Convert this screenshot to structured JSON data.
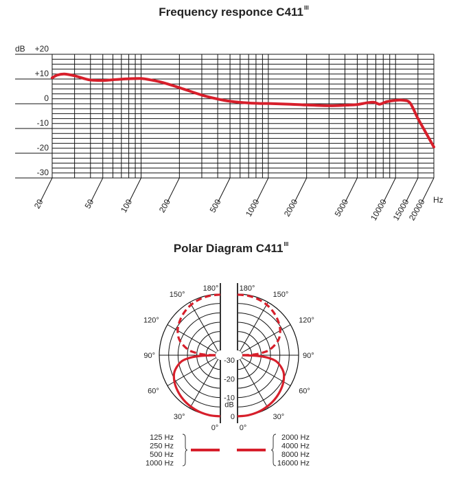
{
  "colors": {
    "curve": "#d71f2b",
    "grid": "#111111",
    "text": "#222222"
  },
  "chart_data": [
    {
      "type": "line",
      "title": "Frequency responce C411",
      "title_superscript": "III",
      "xlabel": "Hz",
      "ylabel": "dB",
      "xscale": "log",
      "xlim": [
        20,
        20000
      ],
      "ylim": [
        -30,
        20
      ],
      "x_tick_labels": [
        "20",
        "50",
        "100",
        "200",
        "500",
        "1000",
        "2000",
        "5000",
        "10000",
        "15000",
        "20000"
      ],
      "x_tick_values": [
        20,
        50,
        100,
        200,
        500,
        1000,
        2000,
        5000,
        10000,
        15000,
        20000
      ],
      "x_grid_values": [
        20,
        30,
        40,
        50,
        60,
        70,
        80,
        90,
        100,
        200,
        300,
        400,
        500,
        600,
        700,
        800,
        900,
        1000,
        2000,
        3000,
        4000,
        5000,
        6000,
        7000,
        8000,
        9000,
        10000,
        15000,
        20000
      ],
      "y_tick_labels": [
        "+20",
        "+10",
        "0",
        "-10",
        "-20",
        "-30"
      ],
      "y_tick_values": [
        20,
        10,
        0,
        -10,
        -20,
        -30
      ],
      "y_grid_step": 2,
      "grid": true,
      "series": [
        {
          "name": "C411 frequency response",
          "x": [
            20,
            22,
            25,
            30,
            35,
            40,
            50,
            60,
            80,
            100,
            120,
            150,
            200,
            300,
            400,
            500,
            700,
            900,
            1000,
            1500,
            2000,
            3000,
            4000,
            5000,
            6000,
            6800,
            7500,
            8500,
            10000,
            11500,
            13000,
            15000,
            17000,
            20000
          ],
          "y": [
            10.5,
            11.6,
            12.0,
            11.3,
            10.3,
            9.6,
            9.4,
            9.7,
            10.1,
            10.2,
            9.6,
            8.5,
            6.5,
            3.5,
            1.9,
            1.0,
            0.3,
            0.1,
            0.1,
            -0.2,
            -0.5,
            -0.8,
            -0.6,
            -0.3,
            0.4,
            0.6,
            -0.2,
            0.8,
            1.4,
            1.4,
            0.3,
            -6.0,
            -11.0,
            -17.5
          ]
        }
      ]
    },
    {
      "type": "polar",
      "title": "Polar Diagram C411",
      "title_superscript": "III",
      "pattern": "figure-8 (split into two half-diagrams)",
      "angle_labels": [
        "0°",
        "30°",
        "60°",
        "90°",
        "120°",
        "150°",
        "180°"
      ],
      "angle_values": [
        0,
        30,
        60,
        90,
        120,
        150,
        180
      ],
      "radial_labels": [
        "0",
        "-10",
        "-20",
        "-30"
      ],
      "radial_values": [
        0,
        -10,
        -20,
        -30
      ],
      "radial_unit": "dB",
      "rlim": [
        -30,
        0
      ],
      "ring_step_db": 5,
      "legend": {
        "left": {
          "entries": [
            "125 Hz",
            "250 Hz",
            "500 Hz",
            "1000 Hz"
          ],
          "line_style": "solid"
        },
        "right": {
          "entries": [
            "2000 Hz",
            "4000 Hz",
            "8000 Hz",
            "16000 Hz"
          ],
          "line_style": "solid"
        }
      },
      "series": [
        {
          "name": "front lobe (solid)",
          "side": "both",
          "style": "solid",
          "angles": [
            0,
            10,
            20,
            30,
            40,
            50,
            60,
            70,
            80,
            85,
            88,
            90
          ],
          "db": [
            0,
            -0.1,
            -0.4,
            -1.0,
            -1.8,
            -2.9,
            -4.3,
            -6.5,
            -11,
            -16,
            -22,
            -30
          ]
        },
        {
          "name": "rear lobe (dashed)",
          "side": "both",
          "style": "dashed",
          "angles": [
            180,
            170,
            160,
            150,
            140,
            130,
            120,
            110,
            100,
            95,
            92,
            90
          ],
          "db": [
            -0.3,
            -0.4,
            -0.8,
            -1.5,
            -2.7,
            -4.3,
            -6.3,
            -9.5,
            -15,
            -20,
            -25,
            -30
          ]
        }
      ]
    }
  ]
}
